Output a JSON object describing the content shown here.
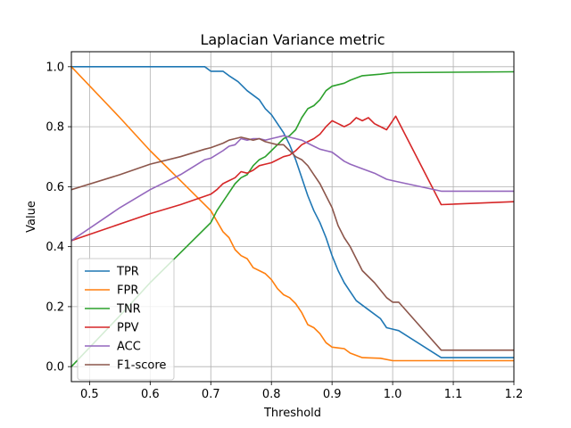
{
  "chart_data": {
    "type": "line",
    "title": "Laplacian Variance metric",
    "xlabel": "Threshold",
    "ylabel": "Value",
    "xlim": [
      0.47,
      1.2
    ],
    "ylim": [
      -0.05,
      1.05
    ],
    "xticks": [
      "0.5",
      "0.6",
      "0.7",
      "0.8",
      "0.9",
      "1.0",
      "1.1",
      "1.2"
    ],
    "xtick_values": [
      0.5,
      0.6,
      0.7,
      0.8,
      0.9,
      1.0,
      1.1,
      1.2
    ],
    "yticks": [
      "0.0",
      "0.2",
      "0.4",
      "0.6",
      "0.8",
      "1.0"
    ],
    "ytick_values": [
      0.0,
      0.2,
      0.4,
      0.6,
      0.8,
      1.0
    ],
    "grid": true,
    "legend": "lower-left",
    "series": [
      {
        "name": "TPR",
        "color": "#1f77b4",
        "points": [
          [
            0.47,
            1.0
          ],
          [
            0.69,
            1.0
          ],
          [
            0.7,
            0.985
          ],
          [
            0.72,
            0.985
          ],
          [
            0.73,
            0.97
          ],
          [
            0.745,
            0.95
          ],
          [
            0.76,
            0.92
          ],
          [
            0.78,
            0.89
          ],
          [
            0.79,
            0.86
          ],
          [
            0.8,
            0.84
          ],
          [
            0.81,
            0.81
          ],
          [
            0.82,
            0.78
          ],
          [
            0.83,
            0.74
          ],
          [
            0.84,
            0.69
          ],
          [
            0.85,
            0.63
          ],
          [
            0.86,
            0.57
          ],
          [
            0.87,
            0.52
          ],
          [
            0.88,
            0.48
          ],
          [
            0.89,
            0.43
          ],
          [
            0.9,
            0.37
          ],
          [
            0.91,
            0.32
          ],
          [
            0.92,
            0.28
          ],
          [
            0.93,
            0.25
          ],
          [
            0.94,
            0.22
          ],
          [
            0.96,
            0.19
          ],
          [
            0.98,
            0.16
          ],
          [
            0.99,
            0.13
          ],
          [
            1.0,
            0.125
          ],
          [
            1.01,
            0.12
          ],
          [
            1.08,
            0.03
          ],
          [
            1.2,
            0.03
          ]
        ]
      },
      {
        "name": "FPR",
        "color": "#ff7f0e",
        "points": [
          [
            0.47,
            1.0
          ],
          [
            0.55,
            0.83
          ],
          [
            0.6,
            0.72
          ],
          [
            0.65,
            0.62
          ],
          [
            0.7,
            0.52
          ],
          [
            0.72,
            0.45
          ],
          [
            0.73,
            0.43
          ],
          [
            0.74,
            0.39
          ],
          [
            0.75,
            0.37
          ],
          [
            0.76,
            0.36
          ],
          [
            0.77,
            0.33
          ],
          [
            0.78,
            0.32
          ],
          [
            0.79,
            0.31
          ],
          [
            0.8,
            0.29
          ],
          [
            0.81,
            0.26
          ],
          [
            0.82,
            0.24
          ],
          [
            0.83,
            0.23
          ],
          [
            0.84,
            0.21
          ],
          [
            0.85,
            0.18
          ],
          [
            0.86,
            0.14
          ],
          [
            0.87,
            0.13
          ],
          [
            0.88,
            0.11
          ],
          [
            0.89,
            0.08
          ],
          [
            0.9,
            0.065
          ],
          [
            0.92,
            0.06
          ],
          [
            0.93,
            0.045
          ],
          [
            0.95,
            0.03
          ],
          [
            0.98,
            0.028
          ],
          [
            1.0,
            0.02
          ],
          [
            1.2,
            0.02
          ]
        ]
      },
      {
        "name": "TNR",
        "color": "#2ca02c",
        "points": [
          [
            0.47,
            0.0
          ],
          [
            0.55,
            0.17
          ],
          [
            0.6,
            0.28
          ],
          [
            0.65,
            0.38
          ],
          [
            0.7,
            0.48
          ],
          [
            0.71,
            0.52
          ],
          [
            0.72,
            0.55
          ],
          [
            0.73,
            0.58
          ],
          [
            0.74,
            0.61
          ],
          [
            0.75,
            0.63
          ],
          [
            0.76,
            0.64
          ],
          [
            0.77,
            0.67
          ],
          [
            0.78,
            0.69
          ],
          [
            0.79,
            0.7
          ],
          [
            0.8,
            0.72
          ],
          [
            0.81,
            0.74
          ],
          [
            0.82,
            0.76
          ],
          [
            0.83,
            0.77
          ],
          [
            0.84,
            0.79
          ],
          [
            0.85,
            0.83
          ],
          [
            0.86,
            0.86
          ],
          [
            0.87,
            0.87
          ],
          [
            0.88,
            0.89
          ],
          [
            0.89,
            0.92
          ],
          [
            0.9,
            0.935
          ],
          [
            0.92,
            0.945
          ],
          [
            0.93,
            0.955
          ],
          [
            0.95,
            0.97
          ],
          [
            0.98,
            0.975
          ],
          [
            1.0,
            0.98
          ],
          [
            1.2,
            0.983
          ]
        ]
      },
      {
        "name": "PPV",
        "color": "#d62728",
        "points": [
          [
            0.47,
            0.42
          ],
          [
            0.6,
            0.51
          ],
          [
            0.65,
            0.54
          ],
          [
            0.7,
            0.575
          ],
          [
            0.71,
            0.59
          ],
          [
            0.72,
            0.61
          ],
          [
            0.73,
            0.62
          ],
          [
            0.74,
            0.63
          ],
          [
            0.75,
            0.65
          ],
          [
            0.76,
            0.645
          ],
          [
            0.77,
            0.655
          ],
          [
            0.78,
            0.67
          ],
          [
            0.79,
            0.675
          ],
          [
            0.8,
            0.68
          ],
          [
            0.81,
            0.69
          ],
          [
            0.82,
            0.7
          ],
          [
            0.83,
            0.705
          ],
          [
            0.84,
            0.72
          ],
          [
            0.85,
            0.74
          ],
          [
            0.86,
            0.75
          ],
          [
            0.87,
            0.76
          ],
          [
            0.88,
            0.775
          ],
          [
            0.89,
            0.8
          ],
          [
            0.9,
            0.82
          ],
          [
            0.91,
            0.81
          ],
          [
            0.92,
            0.8
          ],
          [
            0.93,
            0.81
          ],
          [
            0.94,
            0.83
          ],
          [
            0.95,
            0.82
          ],
          [
            0.96,
            0.83
          ],
          [
            0.97,
            0.81
          ],
          [
            0.98,
            0.8
          ],
          [
            0.99,
            0.79
          ],
          [
            1.0,
            0.82
          ],
          [
            1.005,
            0.835
          ],
          [
            1.08,
            0.54
          ],
          [
            1.2,
            0.55
          ]
        ]
      },
      {
        "name": "ACC",
        "color": "#9467bd",
        "points": [
          [
            0.47,
            0.42
          ],
          [
            0.55,
            0.53
          ],
          [
            0.6,
            0.59
          ],
          [
            0.65,
            0.64
          ],
          [
            0.69,
            0.69
          ],
          [
            0.7,
            0.695
          ],
          [
            0.72,
            0.72
          ],
          [
            0.73,
            0.735
          ],
          [
            0.74,
            0.74
          ],
          [
            0.75,
            0.76
          ],
          [
            0.76,
            0.755
          ],
          [
            0.77,
            0.76
          ],
          [
            0.78,
            0.76
          ],
          [
            0.79,
            0.755
          ],
          [
            0.8,
            0.76
          ],
          [
            0.81,
            0.765
          ],
          [
            0.82,
            0.77
          ],
          [
            0.83,
            0.765
          ],
          [
            0.84,
            0.76
          ],
          [
            0.85,
            0.755
          ],
          [
            0.86,
            0.745
          ],
          [
            0.87,
            0.735
          ],
          [
            0.88,
            0.725
          ],
          [
            0.89,
            0.72
          ],
          [
            0.9,
            0.715
          ],
          [
            0.91,
            0.7
          ],
          [
            0.92,
            0.685
          ],
          [
            0.93,
            0.675
          ],
          [
            0.95,
            0.66
          ],
          [
            0.97,
            0.645
          ],
          [
            0.99,
            0.625
          ],
          [
            1.0,
            0.62
          ],
          [
            1.08,
            0.585
          ],
          [
            1.2,
            0.585
          ]
        ]
      },
      {
        "name": "F1-score",
        "color": "#8c564b",
        "points": [
          [
            0.47,
            0.59
          ],
          [
            0.55,
            0.64
          ],
          [
            0.6,
            0.675
          ],
          [
            0.65,
            0.7
          ],
          [
            0.69,
            0.725
          ],
          [
            0.7,
            0.73
          ],
          [
            0.72,
            0.745
          ],
          [
            0.73,
            0.755
          ],
          [
            0.74,
            0.76
          ],
          [
            0.75,
            0.765
          ],
          [
            0.76,
            0.76
          ],
          [
            0.77,
            0.755
          ],
          [
            0.78,
            0.76
          ],
          [
            0.79,
            0.75
          ],
          [
            0.8,
            0.745
          ],
          [
            0.81,
            0.74
          ],
          [
            0.82,
            0.74
          ],
          [
            0.83,
            0.72
          ],
          [
            0.84,
            0.7
          ],
          [
            0.85,
            0.69
          ],
          [
            0.86,
            0.67
          ],
          [
            0.87,
            0.64
          ],
          [
            0.88,
            0.61
          ],
          [
            0.89,
            0.57
          ],
          [
            0.9,
            0.53
          ],
          [
            0.91,
            0.47
          ],
          [
            0.92,
            0.43
          ],
          [
            0.93,
            0.4
          ],
          [
            0.94,
            0.36
          ],
          [
            0.95,
            0.32
          ],
          [
            0.97,
            0.28
          ],
          [
            0.99,
            0.23
          ],
          [
            1.0,
            0.215
          ],
          [
            1.01,
            0.215
          ],
          [
            1.08,
            0.055
          ],
          [
            1.2,
            0.055
          ]
        ]
      }
    ]
  }
}
